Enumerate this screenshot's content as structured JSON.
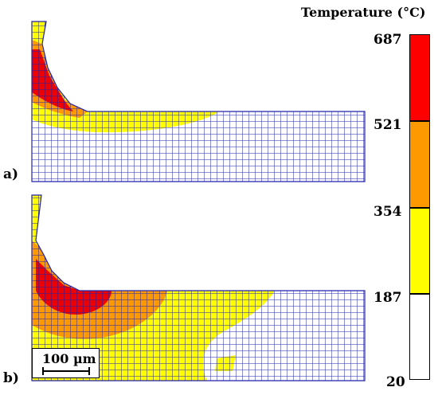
{
  "legend": {
    "title": "Temperature (°C)",
    "ticks": [
      "687",
      "521",
      "354",
      "187",
      "20"
    ],
    "colors": {
      "band_687_521": "#ff0000",
      "band_521_354": "#ff9900",
      "band_354_187": "#ffff00",
      "band_187_20": "#ffffff"
    }
  },
  "panels": {
    "a": {
      "label": "a)"
    },
    "b": {
      "label": "b)"
    }
  },
  "scale_bar": {
    "label": "100 µm"
  },
  "mesh": {
    "line_color": "#2222aa"
  }
}
